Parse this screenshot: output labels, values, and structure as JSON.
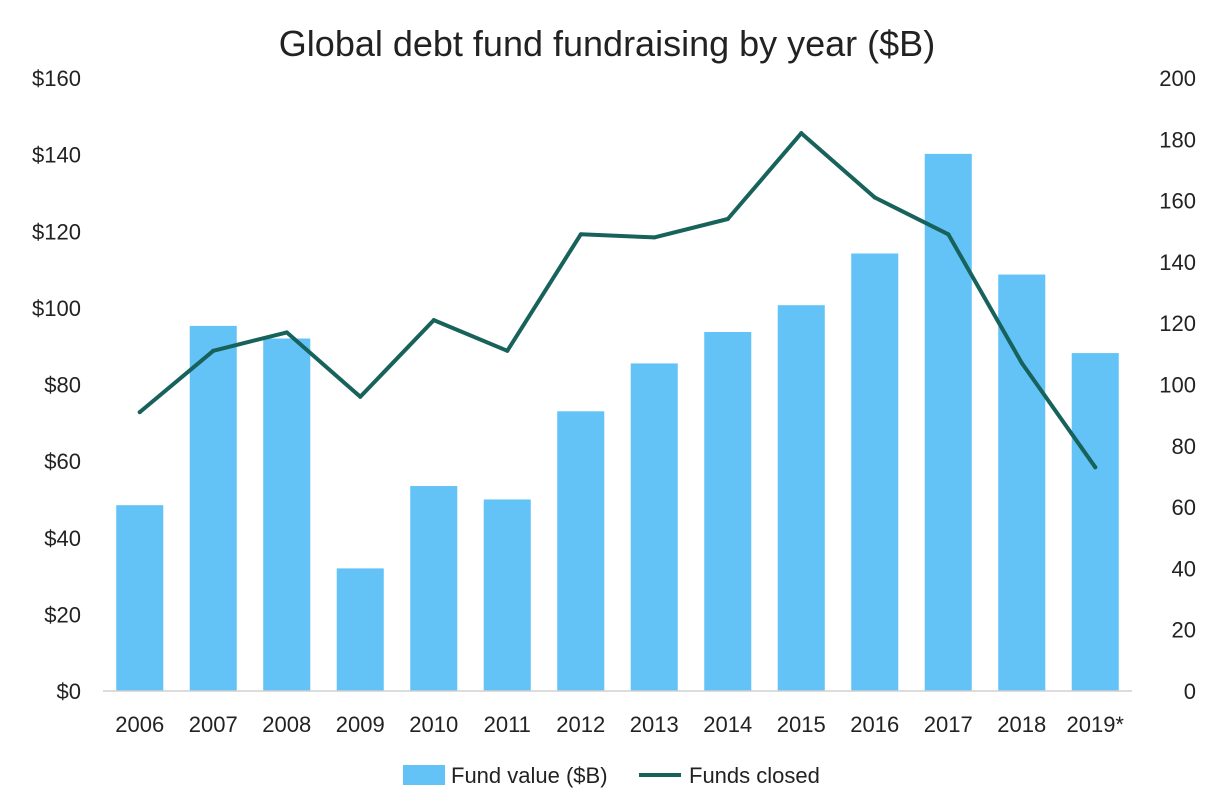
{
  "chart_data": {
    "type": "bar+line",
    "title": "Global debt fund fundraising by year ($B)",
    "categories": [
      "2006",
      "2007",
      "2008",
      "2009",
      "2010",
      "2011",
      "2012",
      "2013",
      "2014",
      "2015",
      "2016",
      "2017",
      "2018",
      "2019*"
    ],
    "series": [
      {
        "name": "Fund value ($B)",
        "type": "bar",
        "axis": "left",
        "color": "#63c3f7",
        "values": [
          48.5,
          95.3,
          92,
          32,
          53.5,
          50,
          73,
          85.5,
          93.7,
          100.7,
          114.2,
          140.2,
          108.7,
          88.2
        ]
      },
      {
        "name": "Funds closed",
        "type": "line",
        "axis": "right",
        "color": "#17625b",
        "values": [
          91,
          111,
          117,
          96,
          121,
          111,
          149,
          148,
          154,
          182,
          161,
          149,
          107,
          73
        ]
      }
    ],
    "y_left": {
      "min": 0,
      "max": 160,
      "step": 20,
      "tick_labels": [
        "$0",
        "$20",
        "$40",
        "$60",
        "$80",
        "$100",
        "$120",
        "$140",
        "$160"
      ]
    },
    "y_right": {
      "min": 0,
      "max": 200,
      "step": 20,
      "tick_labels": [
        "0",
        "20",
        "40",
        "60",
        "80",
        "100",
        "120",
        "140",
        "160",
        "180",
        "200"
      ]
    },
    "grid": false,
    "legend_position": "bottom"
  }
}
